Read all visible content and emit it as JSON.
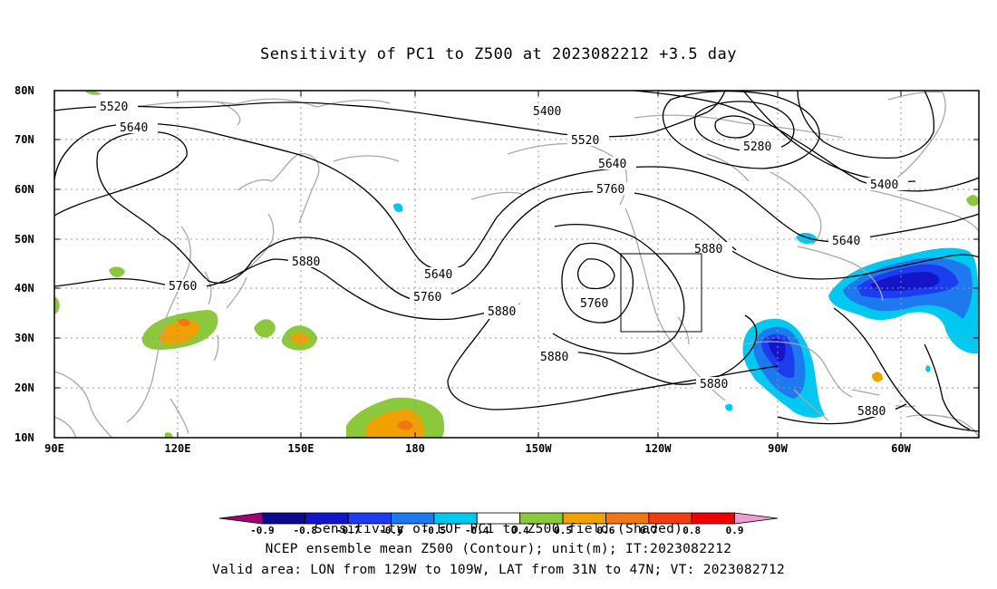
{
  "title": "Sensitivity of PC1 to Z500 at 2023082212 +3.5 day",
  "lat_labels": [
    "80N",
    "70N",
    "60N",
    "50N",
    "40N",
    "30N",
    "20N",
    "10N"
  ],
  "lon_labels": [
    "90E",
    "120E",
    "150E",
    "180",
    "150W",
    "120W",
    "90W",
    "60W"
  ],
  "contour_labels": [
    {
      "text": "5520"
    },
    {
      "text": "5640"
    },
    {
      "text": "5400"
    },
    {
      "text": "5520"
    },
    {
      "text": "5640"
    },
    {
      "text": "5760"
    },
    {
      "text": "5280"
    },
    {
      "text": "5400"
    },
    {
      "text": "5640"
    },
    {
      "text": "5880"
    },
    {
      "text": "5760"
    },
    {
      "text": "5880"
    },
    {
      "text": "5640"
    },
    {
      "text": "5760"
    },
    {
      "text": "5880"
    },
    {
      "text": "5760"
    },
    {
      "text": "5880"
    },
    {
      "text": "5880"
    },
    {
      "text": "5880"
    }
  ],
  "colorbar": {
    "label_values": [
      "-0.9",
      "-0.8",
      "-0.7",
      "-0.6",
      "-0.5",
      "-0.4",
      "0.4",
      "0.5",
      "0.6",
      "0.7",
      "0.8",
      "0.9"
    ],
    "colors": [
      "#a0007a",
      "#0a0a8c",
      "#1414c8",
      "#1c3cf0",
      "#1e78f0",
      "#00c8f0",
      "#ffffff",
      "#8cc83c",
      "#f0a000",
      "#f07814",
      "#f03c14",
      "#f00000",
      "#f09bd2"
    ]
  },
  "captions": [
    "Sensitivity of EOF PC1 to Z500 field (Shaded)",
    "NCEP ensemble mean Z500 (Contour); unit(m); IT:2023082212",
    "Valid area: LON from 129W to 109W, LAT from 31N to 47N; VT: 2023082712"
  ]
}
